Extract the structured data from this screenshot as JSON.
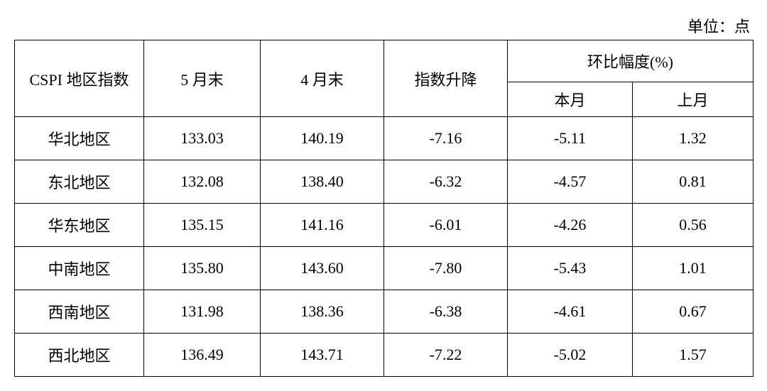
{
  "unit_label": "单位：点",
  "table": {
    "columns": {
      "c0": "CSPI 地区指数",
      "c1": "5 月末",
      "c2": "4 月末",
      "c3": "指数升降",
      "group": "环比幅度(%)",
      "g1": "本月",
      "g2": "上月"
    },
    "rows": [
      {
        "region": "华北地区",
        "may": "133.03",
        "apr": "140.19",
        "delta": "-7.16",
        "mom_this": "-5.11",
        "mom_last": "1.32"
      },
      {
        "region": "东北地区",
        "may": "132.08",
        "apr": "138.40",
        "delta": "-6.32",
        "mom_this": "-4.57",
        "mom_last": "0.81"
      },
      {
        "region": "华东地区",
        "may": "135.15",
        "apr": "141.16",
        "delta": "-6.01",
        "mom_this": "-4.26",
        "mom_last": "0.56"
      },
      {
        "region": "中南地区",
        "may": "135.80",
        "apr": "143.60",
        "delta": "-7.80",
        "mom_this": "-5.43",
        "mom_last": "1.01"
      },
      {
        "region": "西南地区",
        "may": "131.98",
        "apr": "138.36",
        "delta": "-6.38",
        "mom_this": "-4.61",
        "mom_last": "0.67"
      },
      {
        "region": "西北地区",
        "may": "136.49",
        "apr": "143.71",
        "delta": "-7.22",
        "mom_this": "-5.02",
        "mom_last": "1.57"
      }
    ],
    "header_row_height": 58,
    "subheader_row_height": 48,
    "body_row_height": 60,
    "font_size": 22,
    "border_color": "#000000",
    "background_color": "#ffffff",
    "text_color": "#000000"
  }
}
